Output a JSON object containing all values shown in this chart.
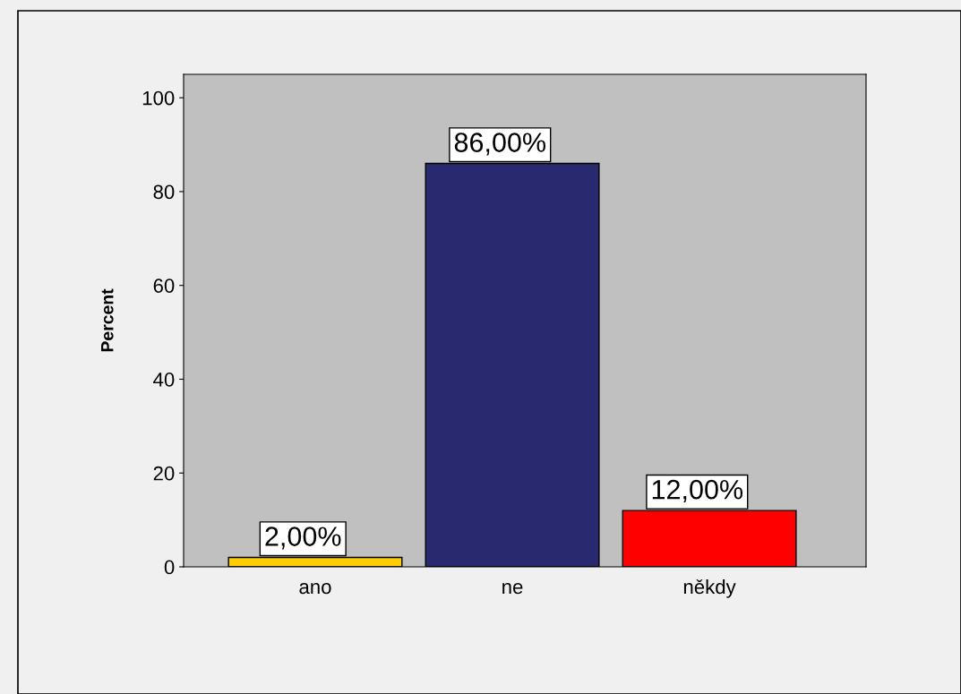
{
  "chart_data": {
    "type": "bar",
    "ylabel": "Percent",
    "categories": [
      "ano",
      "ne",
      "někdy"
    ],
    "values": [
      2,
      86,
      12
    ],
    "colors": [
      "#ffcc00",
      "#29296f",
      "#ff0000"
    ],
    "value_labels": [
      "2,00%",
      "86,00%",
      "12,00%"
    ],
    "ylim": [
      0,
      105
    ],
    "yticks": [
      0,
      20,
      40,
      60,
      80,
      100
    ],
    "grid": false,
    "legend": false
  }
}
